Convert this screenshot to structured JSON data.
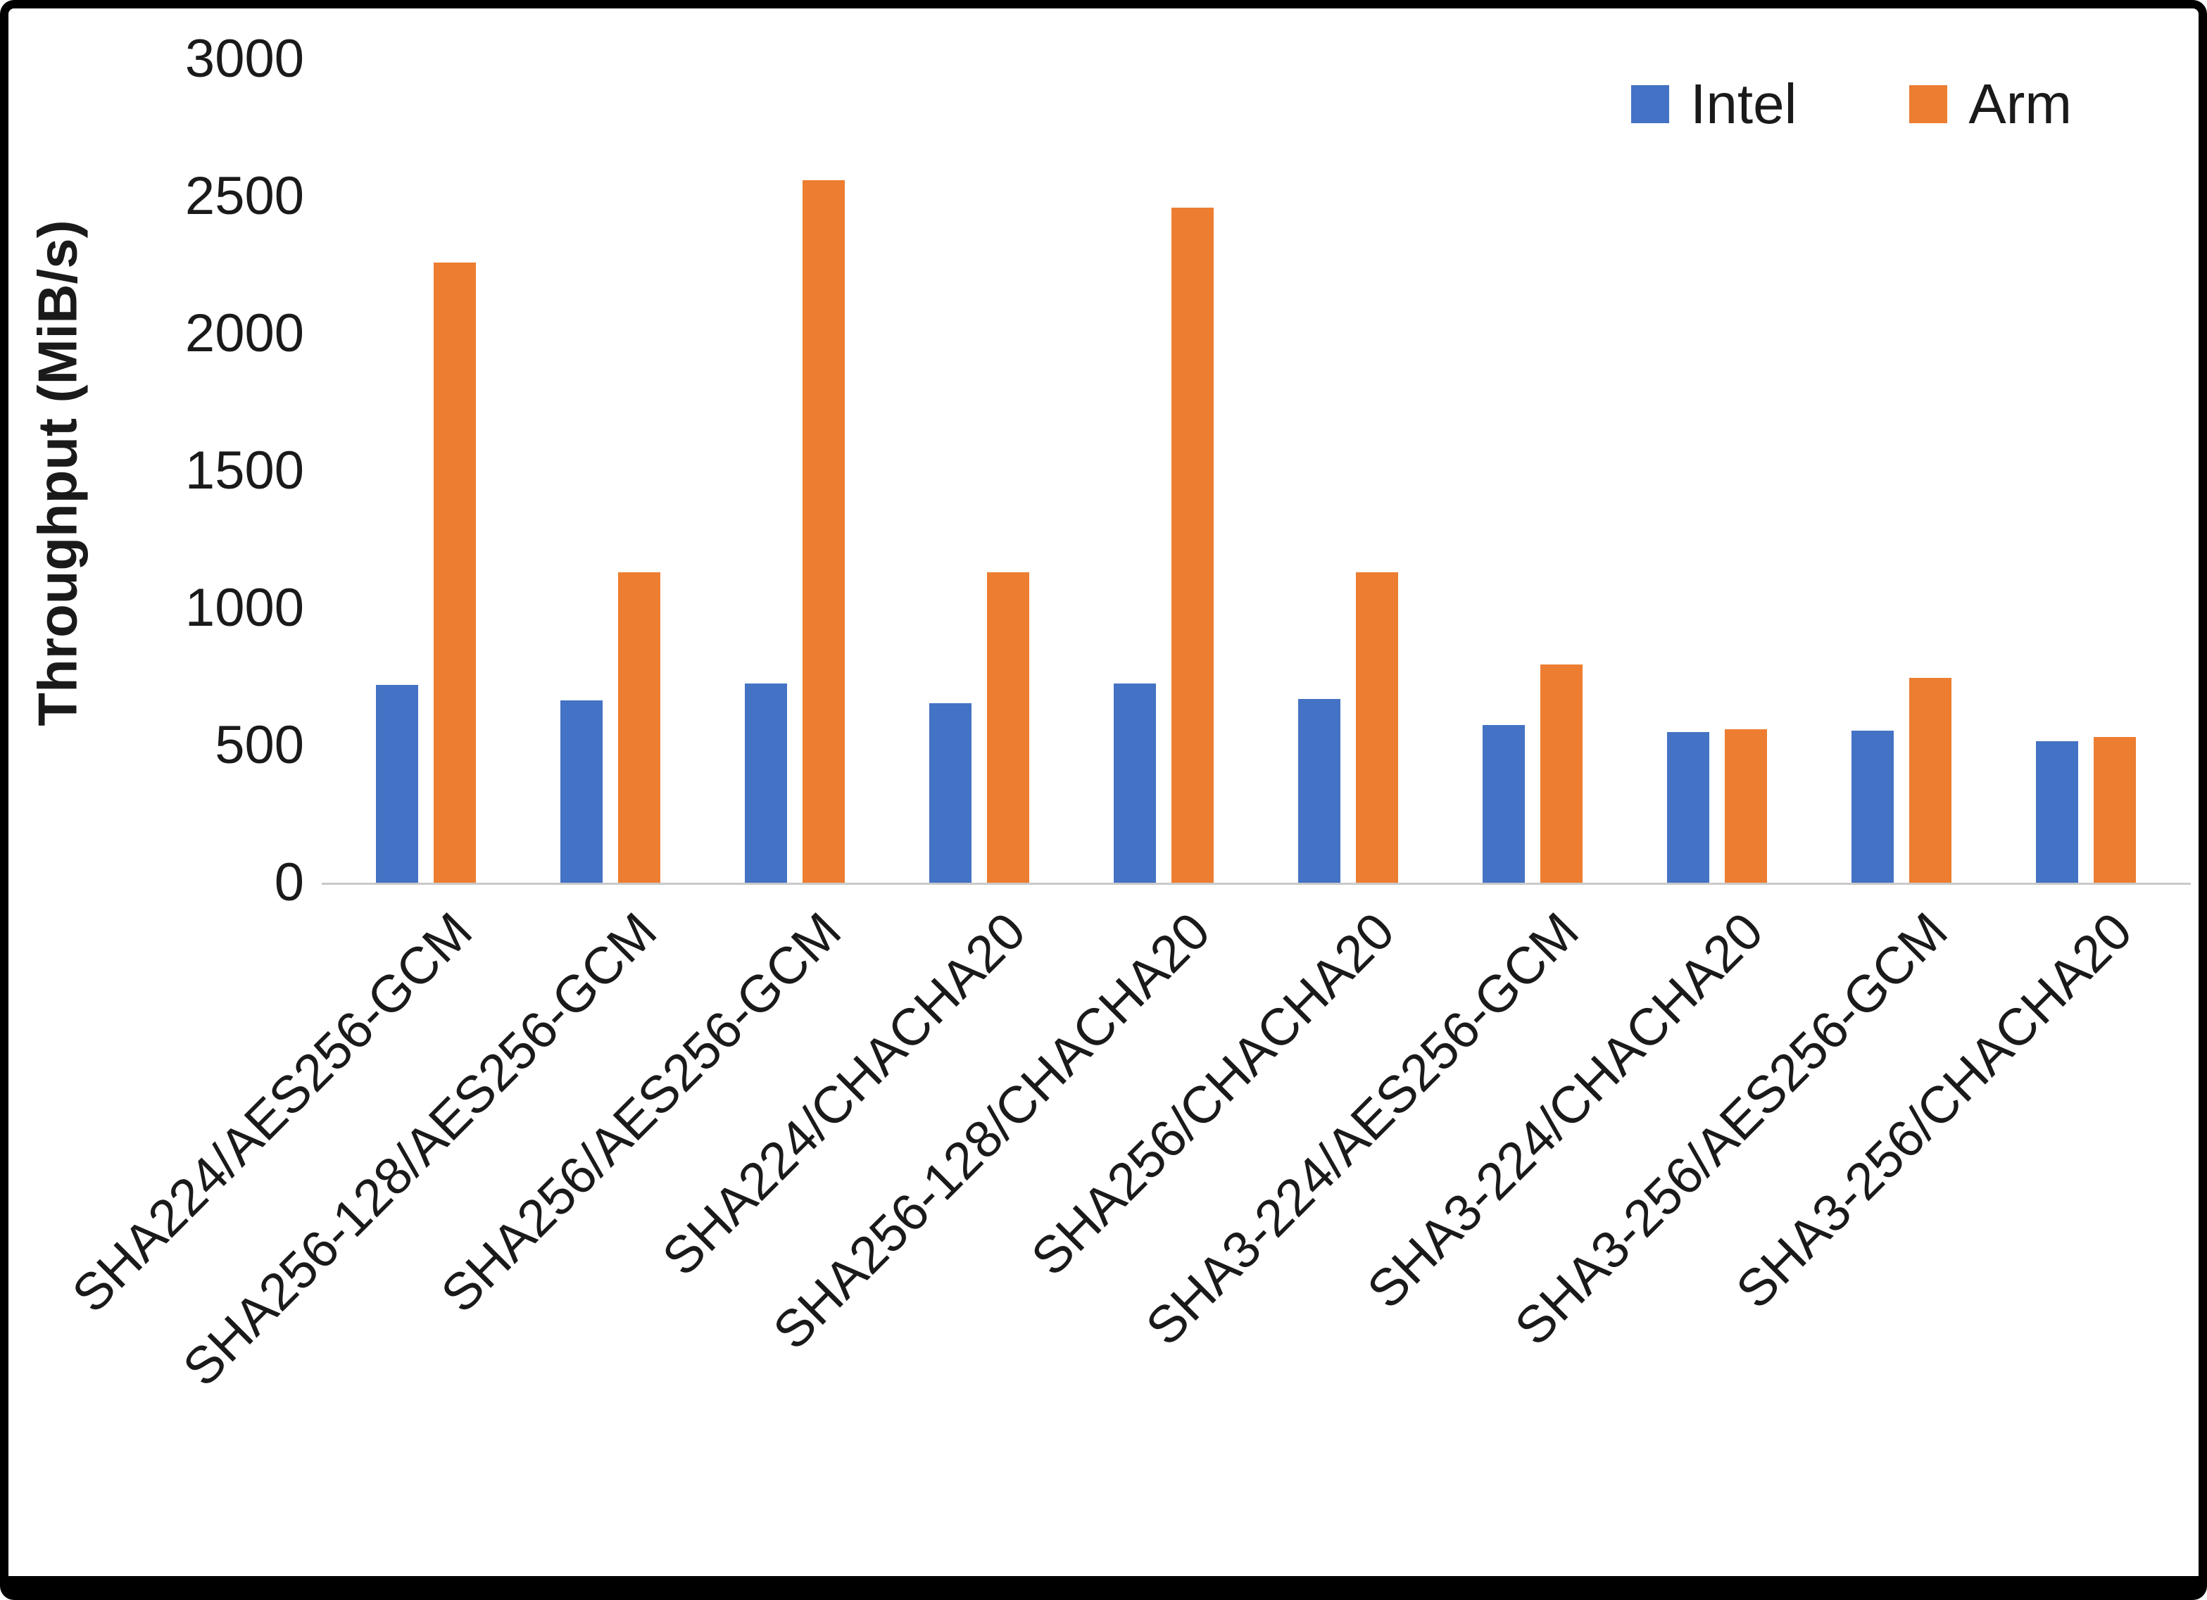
{
  "chart_data": {
    "type": "bar",
    "title": "",
    "ylabel": "Throughput (MiB/s)",
    "xlabel": "",
    "ylim": [
      0,
      3000
    ],
    "yticks": [
      0,
      500,
      1000,
      1500,
      2000,
      2500,
      3000
    ],
    "grid": false,
    "legend_position": "top-right",
    "categories": [
      "SHA224/AES256-GCM",
      "SHA256-128/AES256-GCM",
      "SHA256/AES256-GCM",
      "SHA224/CHACHA20",
      "SHA256-128/CHACHA20",
      "SHA256/CHACHA20",
      "SHA3-224/AES256-GCM",
      "SHA3-224/CHACHA20",
      "SHA3-256/AES256-GCM",
      "SHA3-256/CHACHA20"
    ],
    "series": [
      {
        "name": "Intel",
        "color": "#4472C4",
        "values": [
          720,
          665,
          725,
          655,
          725,
          670,
          575,
          550,
          555,
          515
        ]
      },
      {
        "name": "Arm",
        "color": "#ED7D31",
        "values": [
          2260,
          1130,
          2560,
          1130,
          2460,
          1130,
          795,
          560,
          745,
          530
        ]
      }
    ]
  }
}
